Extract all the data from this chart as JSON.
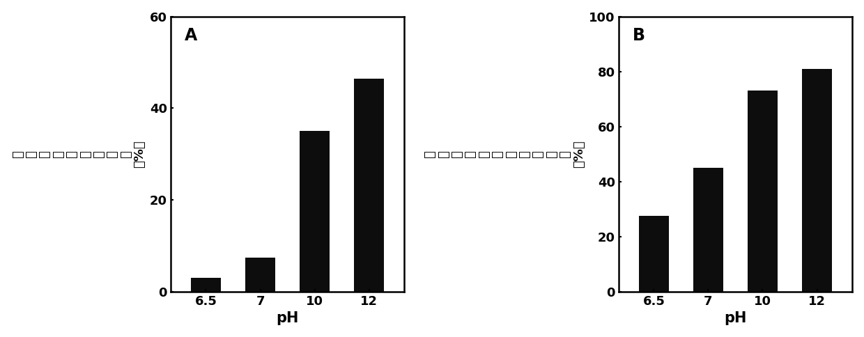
{
  "panel_A": {
    "label": "A",
    "categories": [
      "6.5",
      "7",
      "10",
      "12"
    ],
    "values": [
      3.0,
      7.5,
      35.0,
      46.5
    ],
    "ylabel": "总化学需氧量去除率（%）",
    "ylabel_chars": [
      "总",
      "化",
      "学",
      "需",
      "氧",
      "量",
      "去",
      "除",
      "率",
      "（%）"
    ],
    "xlabel": "pH",
    "ylim": [
      0,
      60
    ],
    "yticks": [
      0,
      20,
      40,
      60
    ],
    "bar_color": "#0d0d0d"
  },
  "panel_B": {
    "label": "B",
    "categories": [
      "6.5",
      "7",
      "10",
      "12"
    ],
    "values": [
      27.5,
      45.0,
      73.0,
      81.0
    ],
    "ylabel": "可溶性化学需氧量去除率（%）",
    "ylabel_chars": [
      "可",
      "溶",
      "性",
      "化",
      "学",
      "需",
      "氧",
      "量",
      "去",
      "除",
      "率",
      "（%）"
    ],
    "xlabel": "pH",
    "ylim": [
      0,
      100
    ],
    "yticks": [
      0,
      20,
      40,
      60,
      80,
      100
    ],
    "bar_color": "#0d0d0d"
  },
  "fig_bg": "#ffffff",
  "bar_width": 0.55,
  "tick_fontsize": 13,
  "label_fontsize": 14,
  "xlabel_fontsize": 15,
  "panel_label_fontsize": 17,
  "ylabel_fontsize": 13
}
